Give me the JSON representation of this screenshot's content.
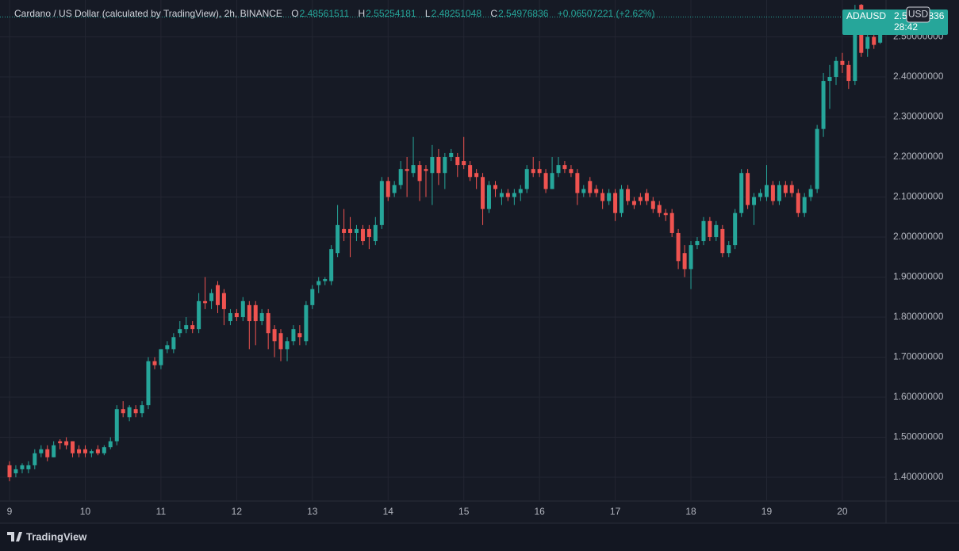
{
  "chart_data": {
    "type": "candlestick",
    "title": "Cardano / US Dollar (calculated by TradingView), 2h, BINANCE",
    "ohlc_labels": [
      "O",
      "H",
      "L",
      "C"
    ],
    "change_label": "+0.06507221 (+2.62%)",
    "symbol": "ADAUSD",
    "countdown": "28:42",
    "currency": "USD",
    "brand": "TradingView",
    "up_color": "#26a69a",
    "down_color": "#ef5350",
    "grid": true,
    "xlim": [
      8.874,
      20.577
    ],
    "xticks": [
      9,
      10,
      11,
      12,
      13,
      14,
      15,
      16,
      17,
      18,
      19,
      20
    ],
    "ylim": [
      1.3406,
      2.5822
    ],
    "yticks": [
      {
        "value": 1.4,
        "label": "1.40000000"
      },
      {
        "value": 1.5,
        "label": "1.50000000"
      },
      {
        "value": 1.6,
        "label": "1.60000000"
      },
      {
        "value": 1.7,
        "label": "1.70000000"
      },
      {
        "value": 1.8,
        "label": "1.80000000"
      },
      {
        "value": 1.9,
        "label": "1.90000000"
      },
      {
        "value": 2.0,
        "label": "2.00000000"
      },
      {
        "value": 2.1,
        "label": "2.10000000"
      },
      {
        "value": 2.2,
        "label": "2.20000000"
      },
      {
        "value": 2.3,
        "label": "2.30000000"
      },
      {
        "value": 2.4,
        "label": "2.40000000"
      },
      {
        "value": 2.5,
        "label": "2.50000000"
      }
    ],
    "x": [
      9,
      9.083,
      9.167,
      9.25,
      9.333,
      9.417,
      9.5,
      9.583,
      9.667,
      9.75,
      9.833,
      9.917,
      10,
      10.083,
      10.167,
      10.25,
      10.333,
      10.417,
      10.5,
      10.583,
      10.667,
      10.75,
      10.833,
      10.917,
      11,
      11.083,
      11.167,
      11.25,
      11.333,
      11.417,
      11.5,
      11.583,
      11.667,
      11.75,
      11.833,
      11.917,
      12,
      12.083,
      12.167,
      12.25,
      12.333,
      12.417,
      12.5,
      12.583,
      12.667,
      12.75,
      12.833,
      12.917,
      13,
      13.083,
      13.167,
      13.25,
      13.333,
      13.417,
      13.5,
      13.583,
      13.667,
      13.75,
      13.833,
      13.917,
      14,
      14.083,
      14.167,
      14.25,
      14.333,
      14.417,
      14.5,
      14.583,
      14.667,
      14.75,
      14.833,
      14.917,
      15,
      15.083,
      15.167,
      15.25,
      15.333,
      15.417,
      15.5,
      15.583,
      15.667,
      15.75,
      15.833,
      15.917,
      16,
      16.083,
      16.167,
      16.25,
      16.333,
      16.417,
      16.5,
      16.583,
      16.667,
      16.75,
      16.833,
      16.917,
      17,
      17.083,
      17.167,
      17.25,
      17.333,
      17.417,
      17.5,
      17.583,
      17.667,
      17.75,
      17.833,
      17.917,
      18,
      18.083,
      18.167,
      18.25,
      18.333,
      18.417,
      18.5,
      18.583,
      18.667,
      18.75,
      18.833,
      18.917,
      19,
      19.083,
      19.167,
      19.25,
      19.333,
      19.417,
      19.5,
      19.583,
      19.667,
      19.75,
      19.833,
      19.917,
      20,
      20.083,
      20.167,
      20.25,
      20.333,
      20.417,
      20.5
    ],
    "open": [
      1.43,
      1.41,
      1.42,
      1.42,
      1.43,
      1.46,
      1.47,
      1.45,
      1.49,
      1.49,
      1.49,
      1.47,
      1.47,
      1.46,
      1.47,
      1.46,
      1.475,
      1.49,
      1.57,
      1.55,
      1.57,
      1.56,
      1.58,
      1.69,
      1.68,
      1.72,
      1.72,
      1.76,
      1.77,
      1.78,
      1.77,
      1.84,
      1.84,
      1.88,
      1.86,
      1.79,
      1.81,
      1.8,
      1.83,
      1.83,
      1.79,
      1.81,
      1.77,
      1.76,
      1.72,
      1.74,
      1.76,
      1.74,
      1.83,
      1.88,
      1.89,
      1.89,
      1.96,
      2.02,
      2.02,
      2.01,
      2.02,
      2.02,
      1.99,
      2.03,
      2.14,
      2.11,
      2.13,
      2.17,
      2.16,
      2.18,
      2.17,
      2.16,
      2.2,
      2.16,
      2.2,
      2.2,
      2.19,
      2.18,
      2.16,
      2.15,
      2.07,
      2.13,
      2.1,
      2.11,
      2.1,
      2.11,
      2.12,
      2.17,
      2.17,
      2.16,
      2.12,
      2.16,
      2.18,
      2.17,
      2.16,
      2.11,
      2.14,
      2.12,
      2.11,
      2.09,
      2.11,
      2.06,
      2.12,
      2.09,
      2.1,
      2.11,
      2.09,
      2.08,
      2.06,
      2.06,
      2.01,
      1.96,
      1.92,
      1.98,
      1.99,
      2.04,
      2.0,
      2.02,
      1.96,
      1.98,
      2.06,
      2.16,
      2.08,
      2.1,
      2.1,
      2.13,
      2.09,
      2.13,
      2.13,
      2.11,
      2.06,
      2.1,
      2.12,
      2.27,
      2.39,
      2.4,
      2.44,
      2.43,
      2.39,
      2.58,
      2.47,
      2.5,
      2.48561511
    ],
    "high": [
      1.44,
      1.43,
      1.435,
      1.44,
      1.47,
      1.48,
      1.48,
      1.49,
      1.495,
      1.5,
      1.49,
      1.48,
      1.48,
      1.47,
      1.48,
      1.48,
      1.5,
      1.58,
      1.59,
      1.58,
      1.58,
      1.59,
      1.7,
      1.7,
      1.72,
      1.74,
      1.76,
      1.79,
      1.8,
      1.79,
      1.86,
      1.9,
      1.87,
      1.89,
      1.87,
      1.82,
      1.82,
      1.85,
      1.84,
      1.84,
      1.82,
      1.82,
      1.78,
      1.77,
      1.75,
      1.78,
      1.78,
      1.84,
      1.88,
      1.9,
      1.9,
      1.98,
      2.08,
      2.07,
      2.05,
      2.03,
      2.03,
      2.03,
      2.05,
      2.15,
      2.15,
      2.14,
      2.19,
      2.2,
      2.25,
      2.19,
      2.18,
      2.23,
      2.22,
      2.21,
      2.22,
      2.21,
      2.25,
      2.19,
      2.17,
      2.16,
      2.14,
      2.14,
      2.12,
      2.12,
      2.12,
      2.13,
      2.18,
      2.2,
      2.19,
      2.17,
      2.2,
      2.2,
      2.19,
      2.18,
      2.17,
      2.13,
      2.15,
      2.13,
      2.12,
      2.12,
      2.12,
      2.13,
      2.13,
      2.1,
      2.11,
      2.12,
      2.1,
      2.09,
      2.07,
      2.07,
      2.02,
      1.98,
      1.99,
      2.0,
      2.05,
      2.05,
      2.04,
      2.03,
      1.99,
      2.07,
      2.17,
      2.17,
      2.11,
      2.12,
      2.18,
      2.14,
      2.14,
      2.14,
      2.14,
      2.12,
      2.11,
      2.13,
      2.28,
      2.41,
      2.43,
      2.45,
      2.46,
      2.44,
      2.58,
      2.6,
      2.51,
      2.52,
      2.55254181
    ],
    "low": [
      1.39,
      1.4,
      1.41,
      1.41,
      1.42,
      1.45,
      1.44,
      1.45,
      1.47,
      1.47,
      1.45,
      1.45,
      1.45,
      1.45,
      1.455,
      1.455,
      1.47,
      1.48,
      1.55,
      1.54,
      1.55,
      1.55,
      1.57,
      1.67,
      1.67,
      1.71,
      1.71,
      1.75,
      1.76,
      1.76,
      1.76,
      1.82,
      1.82,
      1.81,
      1.78,
      1.78,
      1.79,
      1.79,
      1.72,
      1.73,
      1.78,
      1.72,
      1.7,
      1.69,
      1.69,
      1.73,
      1.73,
      1.73,
      1.82,
      1.86,
      1.88,
      1.88,
      1.95,
      1.99,
      1.95,
      1.99,
      1.98,
      1.97,
      1.98,
      2.02,
      2.09,
      2.1,
      2.12,
      2.1,
      2.15,
      2.09,
      2.1,
      2.08,
      2.13,
      2.12,
      2.19,
      2.15,
      2.17,
      2.14,
      2.12,
      2.03,
      2.06,
      2.1,
      2.08,
      2.09,
      2.08,
      2.09,
      2.11,
      2.15,
      2.15,
      2.11,
      2.12,
      2.15,
      2.16,
      2.15,
      2.08,
      2.1,
      2.1,
      2.1,
      2.07,
      2.08,
      2.04,
      2.05,
      2.08,
      2.07,
      2.08,
      2.08,
      2.06,
      2.05,
      2.04,
      2.0,
      1.92,
      1.9,
      1.87,
      1.97,
      1.98,
      1.99,
      1.99,
      1.95,
      1.95,
      1.97,
      2.05,
      2.07,
      2.03,
      2.09,
      2.09,
      2.08,
      2.08,
      2.1,
      2.1,
      2.05,
      2.05,
      2.09,
      2.11,
      2.25,
      2.32,
      2.38,
      2.41,
      2.37,
      2.38,
      2.45,
      2.45,
      2.47,
      2.48251048
    ],
    "close": [
      1.4,
      1.42,
      1.43,
      1.43,
      1.46,
      1.47,
      1.45,
      1.48,
      1.485,
      1.48,
      1.46,
      1.46,
      1.46,
      1.465,
      1.46,
      1.475,
      1.49,
      1.57,
      1.56,
      1.575,
      1.56,
      1.58,
      1.69,
      1.68,
      1.72,
      1.73,
      1.75,
      1.77,
      1.78,
      1.77,
      1.84,
      1.835,
      1.86,
      1.83,
      1.82,
      1.81,
      1.8,
      1.84,
      1.79,
      1.79,
      1.81,
      1.76,
      1.74,
      1.72,
      1.74,
      1.77,
      1.75,
      1.83,
      1.87,
      1.89,
      1.895,
      1.97,
      2.03,
      2.01,
      2.01,
      2.02,
      1.99,
      2.0,
      2.03,
      2.14,
      2.1,
      2.13,
      2.17,
      2.165,
      2.18,
      2.14,
      2.165,
      2.2,
      2.16,
      2.2,
      2.21,
      2.18,
      2.18,
      2.15,
      2.15,
      2.07,
      2.13,
      2.12,
      2.11,
      2.1,
      2.11,
      2.12,
      2.17,
      2.16,
      2.16,
      2.12,
      2.16,
      2.18,
      2.17,
      2.16,
      2.11,
      2.12,
      2.11,
      2.11,
      2.09,
      2.11,
      2.06,
      2.12,
      2.09,
      2.08,
      2.09,
      2.09,
      2.07,
      2.06,
      2.055,
      2.01,
      1.94,
      1.92,
      1.98,
      1.99,
      2.04,
      2.0,
      2.03,
      1.96,
      1.98,
      2.06,
      2.16,
      2.08,
      2.1,
      2.11,
      2.13,
      2.09,
      2.13,
      2.11,
      2.11,
      2.06,
      2.1,
      2.12,
      2.27,
      2.39,
      2.4,
      2.44,
      2.43,
      2.39,
      2.51,
      2.46,
      2.5,
      2.48,
      2.54976836
    ]
  }
}
